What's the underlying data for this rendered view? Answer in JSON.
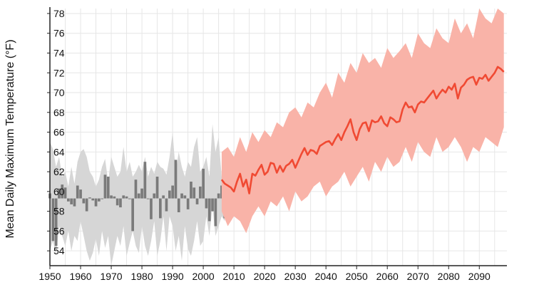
{
  "chart_data": {
    "type": "line",
    "title": "",
    "xlabel": "",
    "ylabel": "Mean Daily Maximum Temperature (°F)",
    "xlim": [
      1950,
      2099
    ],
    "ylim": [
      52.5,
      78.5
    ],
    "grid": true,
    "xticks": [
      1950,
      1960,
      1970,
      1980,
      1990,
      2000,
      2010,
      2020,
      2030,
      2040,
      2050,
      2060,
      2070,
      2080,
      2090
    ],
    "yticks": [
      54,
      56,
      58,
      60,
      62,
      64,
      66,
      68,
      70,
      72,
      74,
      76,
      78
    ],
    "colors": {
      "observed_range": "#d6d6d6",
      "observed_bars": "#7a7a7a",
      "projected_range": "#f9b3a8",
      "projected_line": "#f04a33",
      "grid": "#e6e6e6",
      "axis": "#222222"
    },
    "baseline": 59.3,
    "observed_range": {
      "x": [
        1950,
        1951,
        1952,
        1953,
        1954,
        1955,
        1956,
        1957,
        1958,
        1959,
        1960,
        1961,
        1962,
        1963,
        1964,
        1965,
        1966,
        1967,
        1968,
        1969,
        1970,
        1971,
        1972,
        1973,
        1974,
        1975,
        1976,
        1977,
        1978,
        1979,
        1980,
        1981,
        1982,
        1983,
        1984,
        1985,
        1986,
        1987,
        1988,
        1989,
        1990,
        1991,
        1992,
        1993,
        1994,
        1995,
        1996,
        1997,
        1998,
        1999,
        2000,
        2001,
        2002,
        2003,
        2004,
        2005,
        2006,
        2007
      ],
      "upper": [
        65.0,
        64.3,
        62.5,
        63.5,
        61.5,
        62.0,
        60.5,
        62.5,
        60.8,
        63.0,
        64.0,
        64.3,
        63.5,
        62.0,
        61.5,
        60.5,
        61.2,
        62.5,
        63.3,
        61.0,
        63.5,
        62.5,
        61.5,
        62.0,
        64.5,
        62.0,
        63.0,
        61.5,
        62.0,
        62.7,
        62.0,
        63.5,
        61.5,
        62.5,
        61.8,
        63.0,
        62.5,
        62.3,
        61.7,
        63.5,
        66.0,
        62.0,
        64.0,
        62.5,
        61.5,
        63.0,
        62.5,
        64.5,
        65.5,
        62.0,
        62.5,
        63.5,
        61.5,
        66.8,
        64.0,
        65.5,
        61.5,
        62.0
      ],
      "lower": [
        54.0,
        55.0,
        53.5,
        56.5,
        55.5,
        54.5,
        56.0,
        54.0,
        55.5,
        55.0,
        57.0,
        55.5,
        54.0,
        53.0,
        53.8,
        55.2,
        53.5,
        56.0,
        54.3,
        55.5,
        52.5,
        54.0,
        55.5,
        54.5,
        56.5,
        53.5,
        54.8,
        56.0,
        54.5,
        53.8,
        56.5,
        54.5,
        53.5,
        55.0,
        57.0,
        53.5,
        55.0,
        57.5,
        54.0,
        57.5,
        56.5,
        54.0,
        55.5,
        53.0,
        56.5,
        54.2,
        53.5,
        55.0,
        57.0,
        54.5,
        55.0,
        57.5,
        55.5,
        58.5,
        55.5,
        56.5,
        57.5,
        57.0
      ]
    },
    "observed_bars": {
      "x": [
        1950,
        1951,
        1952,
        1953,
        1954,
        1955,
        1956,
        1957,
        1958,
        1959,
        1960,
        1961,
        1962,
        1963,
        1964,
        1965,
        1966,
        1967,
        1968,
        1969,
        1970,
        1971,
        1972,
        1973,
        1974,
        1975,
        1976,
        1977,
        1978,
        1979,
        1980,
        1981,
        1982,
        1983,
        1984,
        1985,
        1986,
        1987,
        1988,
        1989,
        1990,
        1991,
        1992,
        1993,
        1994,
        1995,
        1996,
        1997,
        1998,
        1999,
        2000,
        2001,
        2002,
        2003,
        2004,
        2005,
        2006,
        2007
      ],
      "values": [
        59.8,
        55.0,
        54.5,
        60.3,
        60.7,
        60.4,
        59.0,
        58.7,
        58.5,
        60.6,
        60.2,
        58.8,
        58.0,
        59.4,
        59.1,
        58.5,
        59.0,
        59.3,
        61.7,
        61.5,
        59.6,
        59.5,
        58.6,
        58.4,
        59.6,
        59.5,
        59.3,
        56.0,
        61.2,
        59.8,
        60.3,
        63.0,
        59.3,
        57.2,
        59.8,
        61.5,
        57.3,
        59.6,
        58.0,
        60.1,
        60.6,
        63.2,
        57.9,
        59.8,
        59.6,
        58.2,
        61.0,
        60.4,
        58.7,
        60.5,
        62.3,
        58.3,
        57.0,
        58.0,
        56.5,
        59.8,
        60.6,
        57.3
      ]
    },
    "projected_range": {
      "x": [
        2006,
        2008,
        2010,
        2012,
        2014,
        2016,
        2018,
        2020,
        2022,
        2024,
        2026,
        2028,
        2030,
        2032,
        2034,
        2036,
        2038,
        2040,
        2042,
        2044,
        2046,
        2048,
        2050,
        2052,
        2054,
        2056,
        2058,
        2060,
        2062,
        2064,
        2066,
        2068,
        2070,
        2072,
        2074,
        2076,
        2078,
        2080,
        2082,
        2084,
        2086,
        2088,
        2090,
        2092,
        2094,
        2096,
        2098
      ],
      "upper": [
        64.0,
        64.5,
        63.5,
        65.5,
        64.0,
        66.0,
        65.0,
        66.2,
        65.5,
        67.0,
        66.5,
        68.0,
        68.5,
        67.5,
        69.0,
        68.5,
        70.0,
        71.0,
        69.5,
        72.0,
        71.0,
        73.0,
        72.0,
        74.0,
        73.0,
        73.5,
        72.5,
        74.5,
        73.5,
        74.2,
        75.0,
        73.5,
        76.0,
        75.0,
        74.5,
        76.5,
        75.5,
        75.0,
        77.5,
        76.0,
        77.0,
        75.5,
        78.5,
        77.5,
        77.0,
        78.5,
        78.0
      ],
      "lower": [
        58.0,
        56.5,
        57.5,
        57.0,
        55.8,
        57.5,
        58.5,
        57.5,
        59.0,
        58.5,
        59.5,
        58.0,
        60.0,
        59.0,
        59.5,
        60.5,
        61.0,
        59.5,
        60.5,
        61.0,
        62.0,
        60.5,
        61.5,
        62.5,
        61.0,
        63.0,
        62.0,
        63.5,
        62.5,
        63.0,
        64.5,
        63.0,
        65.0,
        64.0,
        63.5,
        65.5,
        64.0,
        64.5,
        65.5,
        64.5,
        63.0,
        64.5,
        64.0,
        65.5,
        65.0,
        64.5,
        66.5
      ]
    },
    "projected_mean": {
      "x": [
        2006,
        2007,
        2008,
        2009,
        2010,
        2011,
        2012,
        2013,
        2014,
        2015,
        2016,
        2017,
        2018,
        2019,
        2020,
        2021,
        2022,
        2023,
        2024,
        2025,
        2026,
        2027,
        2028,
        2029,
        2030,
        2031,
        2032,
        2033,
        2034,
        2035,
        2036,
        2037,
        2038,
        2039,
        2040,
        2041,
        2042,
        2043,
        2044,
        2045,
        2046,
        2047,
        2048,
        2049,
        2050,
        2051,
        2052,
        2053,
        2054,
        2055,
        2056,
        2057,
        2058,
        2059,
        2060,
        2061,
        2062,
        2063,
        2064,
        2065,
        2066,
        2067,
        2068,
        2069,
        2070,
        2071,
        2072,
        2073,
        2074,
        2075,
        2076,
        2077,
        2078,
        2079,
        2080,
        2081,
        2082,
        2083,
        2084,
        2085,
        2086,
        2087,
        2088,
        2089,
        2090,
        2091,
        2092,
        2093,
        2094,
        2095,
        2096,
        2097,
        2098
      ],
      "values": [
        61.2,
        60.8,
        60.6,
        60.4,
        60.0,
        61.0,
        61.8,
        60.5,
        61.2,
        59.8,
        61.8,
        61.6,
        62.2,
        62.7,
        61.7,
        62.0,
        62.9,
        62.8,
        61.9,
        62.6,
        62.0,
        62.6,
        62.8,
        63.2,
        62.4,
        63.1,
        63.8,
        64.4,
        63.7,
        64.2,
        64.1,
        63.8,
        64.6,
        64.8,
        65.0,
        65.1,
        64.7,
        65.3,
        65.8,
        65.2,
        66.0,
        66.6,
        67.3,
        66.0,
        65.2,
        66.3,
        66.9,
        67.0,
        66.1,
        67.2,
        67.0,
        67.1,
        67.6,
        66.9,
        66.6,
        67.5,
        67.3,
        67.0,
        67.1,
        68.3,
        69.0,
        68.5,
        68.6,
        68.0,
        68.8,
        69.1,
        69.0,
        69.4,
        69.8,
        70.2,
        69.4,
        69.9,
        70.3,
        70.0,
        70.6,
        70.3,
        70.9,
        69.4,
        70.5,
        70.8,
        71.3,
        71.5,
        71.6,
        70.8,
        71.5,
        71.4,
        71.8,
        71.2,
        71.6,
        72.0,
        72.6,
        72.4,
        72.1
      ]
    }
  }
}
